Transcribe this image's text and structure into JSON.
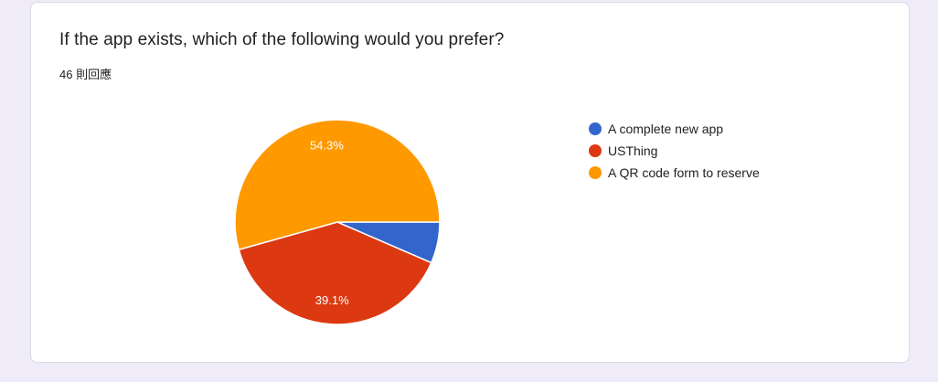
{
  "question": {
    "title": "If the app exists, which of the following would you prefer?",
    "response_count": "46 則回應"
  },
  "chart_data": {
    "type": "pie",
    "categories": [
      "A complete new app",
      "USThing",
      "A QR code form to reserve"
    ],
    "values": [
      6.5,
      39.1,
      54.3
    ],
    "data_labels": [
      "",
      "39.1%",
      "54.3%"
    ],
    "colors": [
      "#3366cc",
      "#dc3912",
      "#ff9900"
    ],
    "legend_position": "right"
  }
}
